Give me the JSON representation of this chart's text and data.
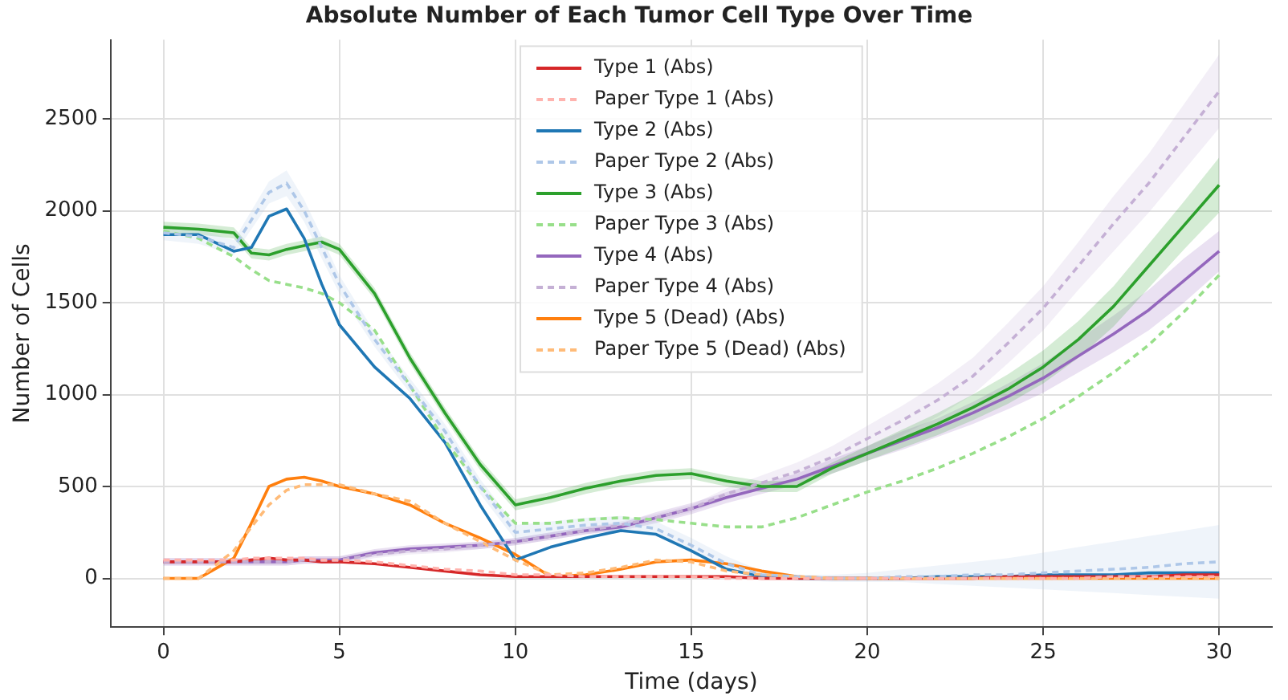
{
  "chart_data": {
    "type": "line",
    "title": "Absolute Number of Each Tumor Cell Type Over Time",
    "xlabel": "Time (days)",
    "ylabel": "Number of Cells",
    "x": [
      0,
      1,
      2,
      2.5,
      3,
      3.5,
      4,
      4.5,
      5,
      6,
      7,
      8,
      9,
      10,
      11,
      12,
      13,
      14,
      15,
      16,
      17,
      18,
      19,
      20,
      21,
      22,
      23,
      24,
      25,
      26,
      27,
      28,
      29,
      30
    ],
    "xlim": [
      -1.5,
      31.5
    ],
    "xticks": [
      0,
      5,
      10,
      15,
      20,
      25,
      30
    ],
    "ylim": [
      -265,
      2930
    ],
    "yticks": [
      0,
      500,
      1000,
      1500,
      2000,
      2500
    ],
    "grid": true,
    "legend": "top",
    "marker": "none",
    "series": [
      {
        "name": "Type 1 (Abs)",
        "color": "#d62728",
        "line_style": "solid",
        "values": [
          90,
          90,
          90,
          100,
          110,
          100,
          100,
          90,
          90,
          80,
          60,
          40,
          20,
          10,
          10,
          10,
          10,
          10,
          10,
          10,
          0,
          0,
          0,
          0,
          0,
          0,
          0,
          10,
          10,
          10,
          10,
          10,
          20,
          20
        ]
      },
      {
        "name": "Paper Type 1 (Abs)",
        "color": "#ffb3ae",
        "line_style": "dashed",
        "values": [
          100,
          100,
          100,
          110,
          110,
          110,
          110,
          100,
          100,
          90,
          70,
          50,
          40,
          20,
          20,
          10,
          10,
          10,
          10,
          0,
          0,
          0,
          0,
          0,
          0,
          0,
          0,
          0,
          0,
          0,
          10,
          10,
          10,
          10
        ]
      },
      {
        "name": "Type 2 (Abs)",
        "color": "#1f77b4",
        "line_style": "solid",
        "values": [
          1870,
          1870,
          1780,
          1800,
          1970,
          2010,
          1850,
          1600,
          1380,
          1150,
          980,
          740,
          400,
          100,
          170,
          220,
          260,
          240,
          150,
          50,
          10,
          0,
          0,
          0,
          0,
          10,
          10,
          10,
          20,
          20,
          20,
          30,
          30,
          30
        ]
      },
      {
        "name": "Paper Type 2 (Abs)",
        "color": "#aec7e8",
        "line_style": "dashed",
        "values": [
          1880,
          1860,
          1800,
          1950,
          2100,
          2150,
          2000,
          1800,
          1600,
          1300,
          1050,
          800,
          500,
          250,
          270,
          290,
          300,
          270,
          180,
          80,
          20,
          10,
          0,
          0,
          10,
          10,
          20,
          20,
          30,
          40,
          50,
          60,
          80,
          90
        ],
        "lower": [
          1840,
          1820,
          1760,
          1900,
          2040,
          2080,
          1940,
          1740,
          1550,
          1260,
          1010,
          760,
          460,
          210,
          230,
          250,
          260,
          230,
          140,
          40,
          0,
          -10,
          -20,
          -20,
          -20,
          -30,
          -40,
          -50,
          -60,
          -70,
          -80,
          -90,
          -100,
          -110
        ],
        "upper": [
          1920,
          1900,
          1840,
          2000,
          2160,
          2220,
          2060,
          1860,
          1650,
          1340,
          1090,
          840,
          540,
          290,
          310,
          330,
          340,
          310,
          220,
          120,
          40,
          20,
          20,
          30,
          50,
          70,
          90,
          110,
          140,
          170,
          200,
          230,
          260,
          290
        ]
      },
      {
        "name": "Type 3 (Abs)",
        "color": "#2ca02c",
        "line_style": "solid",
        "values": [
          1910,
          1900,
          1880,
          1770,
          1760,
          1790,
          1810,
          1830,
          1790,
          1550,
          1200,
          900,
          620,
          400,
          440,
          490,
          530,
          560,
          570,
          530,
          500,
          500,
          600,
          680,
          760,
          840,
          930,
          1030,
          1150,
          1300,
          1480,
          1700,
          1920,
          2140
        ],
        "lower": [
          1880,
          1870,
          1850,
          1740,
          1730,
          1760,
          1780,
          1800,
          1760,
          1520,
          1170,
          870,
          590,
          370,
          410,
          460,
          500,
          530,
          540,
          500,
          470,
          470,
          570,
          640,
          710,
          780,
          860,
          950,
          1060,
          1200,
          1370,
          1580,
          1790,
          1990
        ],
        "upper": [
          1940,
          1930,
          1910,
          1800,
          1790,
          1820,
          1840,
          1860,
          1820,
          1580,
          1230,
          930,
          650,
          430,
          470,
          520,
          560,
          590,
          600,
          560,
          530,
          530,
          630,
          720,
          810,
          900,
          1000,
          1110,
          1240,
          1400,
          1590,
          1820,
          2050,
          2290
        ]
      },
      {
        "name": "Paper Type 3 (Abs)",
        "color": "#98df8a",
        "line_style": "dashed",
        "values": [
          1890,
          1850,
          1750,
          1680,
          1620,
          1600,
          1580,
          1550,
          1500,
          1350,
          1050,
          750,
          500,
          300,
          300,
          320,
          330,
          320,
          300,
          280,
          280,
          330,
          400,
          470,
          530,
          600,
          680,
          770,
          870,
          990,
          1120,
          1270,
          1450,
          1650
        ]
      },
      {
        "name": "Type 4 (Abs)",
        "color": "#9467bd",
        "line_style": "solid",
        "values": [
          90,
          90,
          90,
          90,
          90,
          90,
          100,
          100,
          100,
          140,
          160,
          170,
          180,
          200,
          230,
          260,
          280,
          330,
          380,
          440,
          490,
          540,
          610,
          680,
          750,
          820,
          900,
          990,
          1090,
          1210,
          1330,
          1460,
          1620,
          1780
        ],
        "lower": [
          70,
          70,
          70,
          70,
          70,
          70,
          80,
          80,
          80,
          120,
          140,
          150,
          160,
          180,
          210,
          240,
          260,
          300,
          350,
          410,
          460,
          510,
          570,
          640,
          700,
          770,
          840,
          920,
          1010,
          1120,
          1230,
          1350,
          1500,
          1670
        ],
        "upper": [
          110,
          110,
          110,
          110,
          110,
          110,
          120,
          120,
          120,
          160,
          180,
          190,
          200,
          220,
          250,
          280,
          300,
          360,
          410,
          470,
          520,
          570,
          650,
          720,
          800,
          870,
          960,
          1060,
          1170,
          1300,
          1430,
          1570,
          1740,
          1890
        ]
      },
      {
        "name": "Paper Type 4 (Abs)",
        "color": "#c5b0d5",
        "line_style": "dashed",
        "values": [
          90,
          90,
          90,
          90,
          90,
          90,
          100,
          100,
          100,
          130,
          150,
          160,
          180,
          200,
          230,
          260,
          290,
          330,
          380,
          460,
          520,
          580,
          660,
          760,
          860,
          970,
          1100,
          1280,
          1470,
          1700,
          1930,
          2150,
          2400,
          2650
        ],
        "lower": [
          70,
          70,
          70,
          70,
          70,
          70,
          80,
          80,
          80,
          110,
          130,
          140,
          160,
          180,
          210,
          240,
          270,
          310,
          360,
          430,
          480,
          530,
          600,
          690,
          780,
          880,
          1000,
          1170,
          1350,
          1570,
          1780,
          1990,
          2220,
          2450
        ],
        "upper": [
          110,
          110,
          110,
          110,
          110,
          110,
          120,
          120,
          120,
          150,
          170,
          180,
          200,
          220,
          250,
          280,
          310,
          350,
          400,
          490,
          560,
          630,
          720,
          830,
          940,
          1060,
          1200,
          1390,
          1590,
          1830,
          2080,
          2310,
          2580,
          2850
        ]
      },
      {
        "name": "Type 5 (Dead) (Abs)",
        "color": "#ff7f0e",
        "line_style": "solid",
        "values": [
          0,
          0,
          110,
          300,
          500,
          540,
          550,
          530,
          500,
          460,
          400,
          300,
          220,
          130,
          10,
          20,
          50,
          90,
          100,
          80,
          40,
          10,
          0,
          0,
          0,
          0,
          0,
          0,
          0,
          0,
          0,
          0,
          0,
          0
        ]
      },
      {
        "name": "Paper Type 5 (Dead) (Abs)",
        "color": "#ffbb78",
        "line_style": "dashed",
        "values": [
          0,
          0,
          150,
          280,
          400,
          480,
          510,
          510,
          510,
          460,
          420,
          300,
          200,
          100,
          20,
          30,
          60,
          100,
          90,
          40,
          20,
          10,
          0,
          0,
          0,
          0,
          0,
          0,
          0,
          0,
          0,
          0,
          0,
          0
        ]
      }
    ]
  }
}
